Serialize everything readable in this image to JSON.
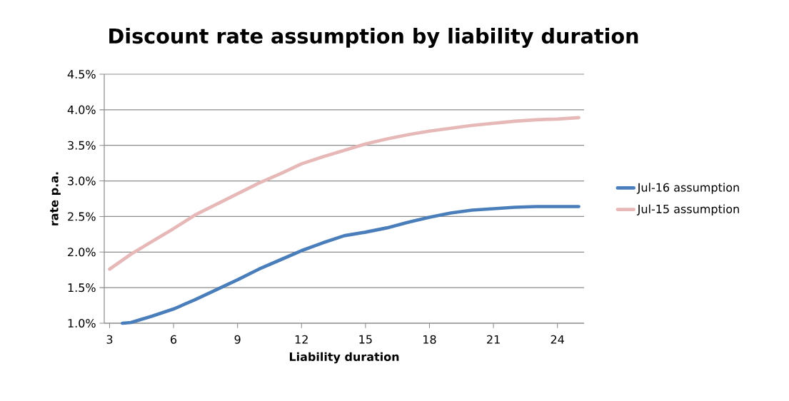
{
  "chart_data": {
    "type": "line",
    "title": "Discount rate assumption by liability duration",
    "xlabel": "Liability duration",
    "ylabel": "rate p.a.",
    "xlim": [
      2.75,
      25.25
    ],
    "xticks": [
      3,
      6,
      9,
      12,
      15,
      18,
      21,
      24
    ],
    "ylim": [
      1.0,
      4.5
    ],
    "yticks": [
      {
        "value": 1.0,
        "label": "1.0%"
      },
      {
        "value": 1.5,
        "label": "1.5%"
      },
      {
        "value": 2.0,
        "label": "2.0%"
      },
      {
        "value": 2.5,
        "label": "2.5%"
      },
      {
        "value": 3.0,
        "label": "3.0%"
      },
      {
        "value": 3.5,
        "label": "3.5%"
      },
      {
        "value": 4.0,
        "label": "4.0%"
      },
      {
        "value": 4.5,
        "label": "4.5%"
      }
    ],
    "grid": "y",
    "legend": "right",
    "marker": "none",
    "line_style": "solid",
    "series": [
      {
        "name": "Jul-16 assumption",
        "color": "#4a7ebb",
        "x": [
          3.6,
          4,
          5,
          6,
          7,
          8,
          9,
          10,
          11,
          12,
          13,
          14,
          15,
          16,
          17,
          18,
          19,
          20,
          21,
          22,
          23,
          24,
          25
        ],
        "values": [
          1.0,
          1.01,
          1.1,
          1.2,
          1.33,
          1.47,
          1.61,
          1.76,
          1.89,
          2.02,
          2.13,
          2.23,
          2.28,
          2.34,
          2.42,
          2.49,
          2.55,
          2.59,
          2.61,
          2.63,
          2.64,
          2.64,
          2.64
        ]
      },
      {
        "name": "Jul-15 assumption",
        "color": "#e6b9b8",
        "x": [
          3,
          4,
          5,
          6,
          7,
          8,
          9,
          10,
          11,
          12,
          13,
          14,
          15,
          16,
          17,
          18,
          19,
          20,
          21,
          22,
          23,
          24,
          25
        ],
        "values": [
          1.76,
          1.97,
          2.15,
          2.33,
          2.52,
          2.67,
          2.82,
          2.97,
          3.1,
          3.24,
          3.34,
          3.43,
          3.52,
          3.59,
          3.65,
          3.7,
          3.74,
          3.78,
          3.81,
          3.84,
          3.86,
          3.87,
          3.89
        ]
      }
    ]
  }
}
